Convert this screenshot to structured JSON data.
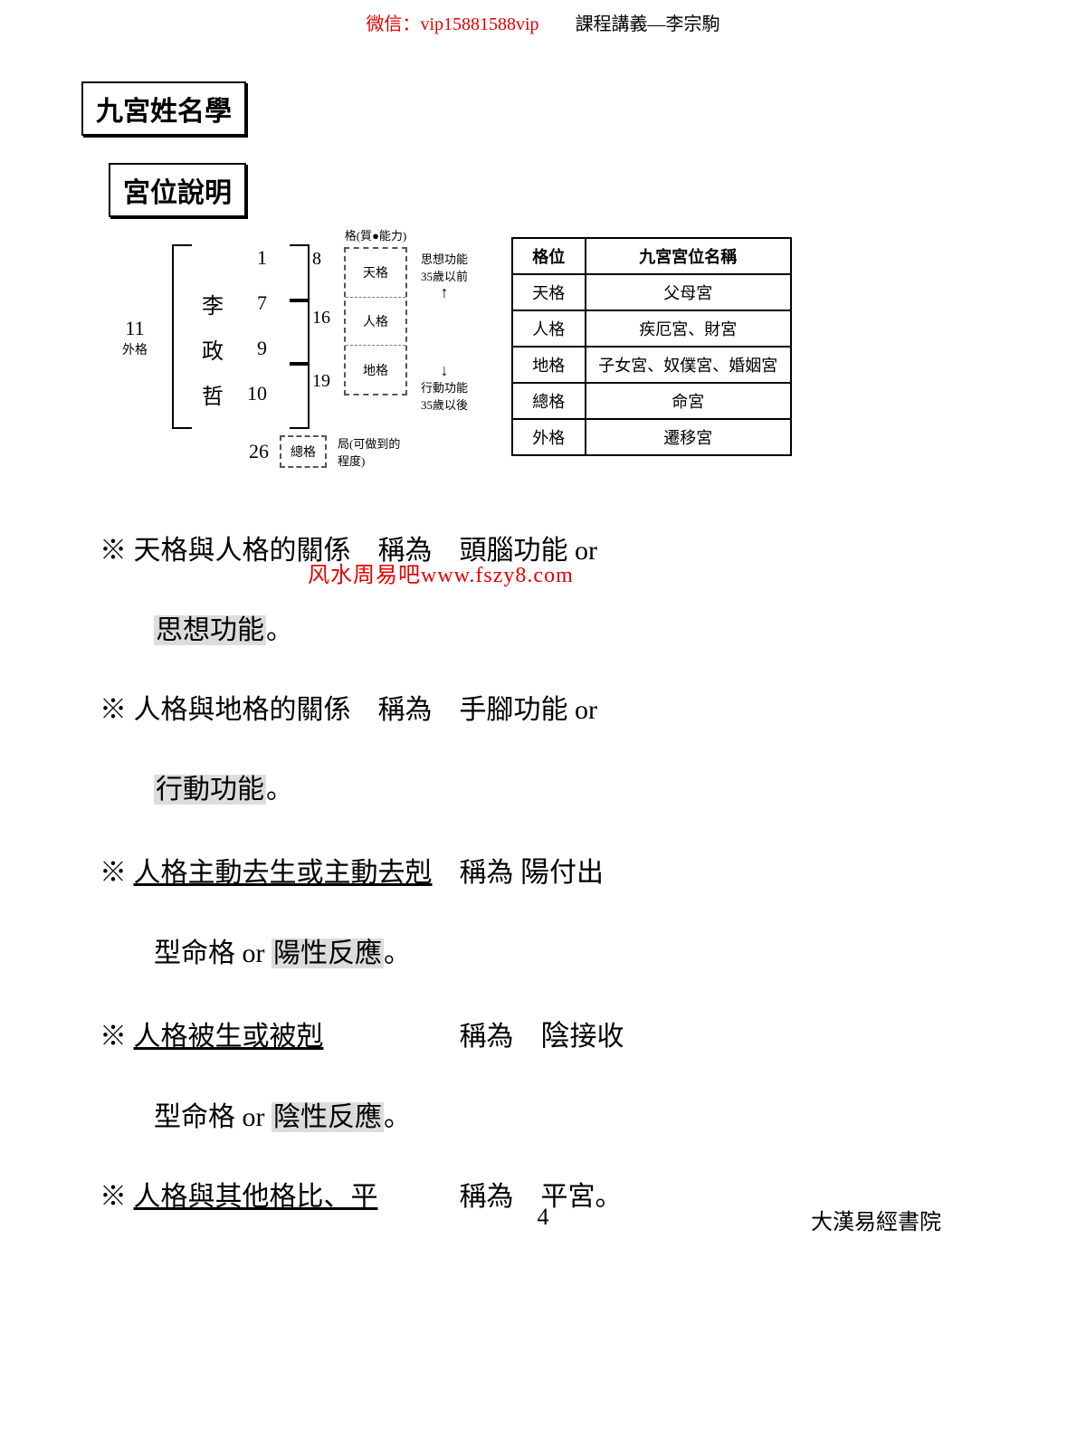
{
  "header": {
    "wechat_label": "微信：",
    "wechat_id": "vip15881588vip",
    "doc_title": "課程講義—李宗駒"
  },
  "titles": {
    "main": "九宮姓名學",
    "sub": "宮位說明"
  },
  "diagram": {
    "left_num": "11",
    "left_label": "外格",
    "rows": [
      {
        "char": "",
        "num": "1"
      },
      {
        "char": "李",
        "num": "7"
      },
      {
        "char": "政",
        "num": "9"
      },
      {
        "char": "哲",
        "num": "10"
      }
    ],
    "bracket_nums": [
      "8",
      "16",
      "19"
    ],
    "ge_header": "格(質●能力)",
    "ge_cells": [
      "天格",
      "人格",
      "地格"
    ],
    "note_top_a": "思想功能",
    "note_top_b": "35歲以前",
    "note_bot_a": "行動功能",
    "note_bot_b": "35歲以後",
    "total_num": "26",
    "total_box": "總格",
    "total_note": "局(可做到的程度)"
  },
  "table": {
    "head": [
      "格位",
      "九宮宮位名稱"
    ],
    "rows": [
      [
        "天格",
        "父母宮"
      ],
      [
        "人格",
        "疾厄宮、財宮"
      ],
      [
        "地格",
        "子女宮、奴僕宮、婚姻宮"
      ],
      [
        "總格",
        "命宮"
      ],
      [
        "外格",
        "遷移宮"
      ]
    ]
  },
  "body": {
    "l1a": "※ 天格與人格的關係　稱為　頭腦功能 or",
    "l1b": "思想功能",
    "dot": "。",
    "l2a": "※ 人格與地格的關係　稱為　手腳功能 or",
    "l2b": "行動功能",
    "l3a": "※ ",
    "l3u": "人格主動去生或主動去剋",
    "l3b": "　稱為 ",
    "l3h": "陽",
    "l3c": "付出",
    "l3d": "型命格 or ",
    "l3e": "陽性反應",
    "l4a": "※ ",
    "l4u": "人格被生或被剋",
    "l4b": "　　　　　稱為　",
    "l4h": "陰",
    "l4c": "接收",
    "l4d": "型命格 or ",
    "l4e": "陰性反應",
    "l5a": "※ ",
    "l5u": "人格與其他格比、平",
    "l5b": "　　　稱為　平宮。"
  },
  "watermark": "风水周易吧www.fszy8.com",
  "footer": {
    "page": "4",
    "right": "大漢易經書院"
  },
  "colors": {
    "red": "#e60000",
    "black": "#000000",
    "hl": "#dcdcdc",
    "bg": "#ffffff"
  }
}
